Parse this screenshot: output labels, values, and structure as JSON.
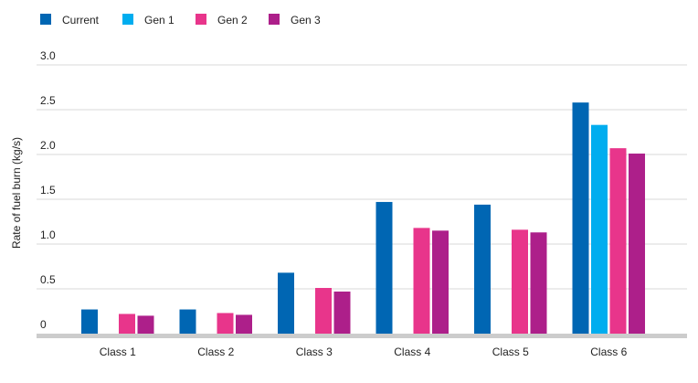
{
  "chart_data": {
    "type": "bar",
    "title": "",
    "xlabel": "",
    "ylabel": "Rate of fuel burn (kg/s)",
    "ylim": [
      0,
      3.0
    ],
    "yticks": [
      {
        "value": 0,
        "label": "0"
      },
      {
        "value": 0.5,
        "label": "0.5"
      },
      {
        "value": 1.0,
        "label": "1.0"
      },
      {
        "value": 1.5,
        "label": "1.5"
      },
      {
        "value": 2.0,
        "label": "2.0"
      },
      {
        "value": 2.5,
        "label": "2.5"
      },
      {
        "value": 3.0,
        "label": "3.0"
      }
    ],
    "grid": true,
    "legend_position": "top-left",
    "categories": [
      "Class 1",
      "Class 2",
      "Class 3",
      "Class 4",
      "Class 5",
      "Class 6"
    ],
    "series": [
      {
        "name": "Current",
        "color": "#0066b3",
        "values": [
          0.27,
          0.27,
          0.68,
          1.47,
          1.44,
          2.58
        ]
      },
      {
        "name": "Gen 1",
        "color": "#00adef",
        "values": [
          null,
          null,
          null,
          null,
          null,
          2.33
        ]
      },
      {
        "name": "Gen 2",
        "color": "#e8358b",
        "values": [
          0.22,
          0.23,
          0.51,
          1.18,
          1.16,
          2.07
        ]
      },
      {
        "name": "Gen 3",
        "color": "#ad1f8a",
        "values": [
          0.2,
          0.21,
          0.47,
          1.15,
          1.13,
          2.01
        ]
      }
    ]
  }
}
